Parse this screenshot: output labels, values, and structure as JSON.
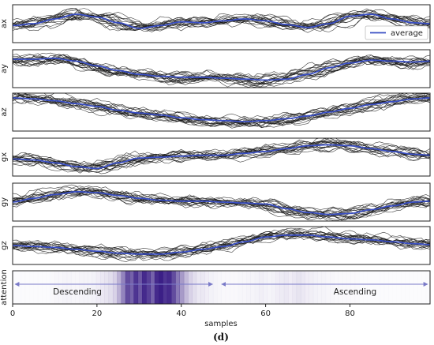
{
  "chart_data": {
    "type": "line",
    "caption": "(d)",
    "xlabel": "samples",
    "xlim": [
      0,
      99
    ],
    "x_ticks": [
      0,
      20,
      40,
      60,
      80
    ],
    "legend": {
      "label": "average",
      "placement": "top-right",
      "color": "#3a4fc4"
    },
    "individual_line_color": "#1a1a1a",
    "average_line_color": "#3a4fc4",
    "n_individual_traces": 18,
    "panels": [
      {
        "name": "ax",
        "ylabel": "ax",
        "ylim": [
          -1,
          1
        ],
        "average": [
          [
            0,
            -0.1
          ],
          [
            5,
            0.0
          ],
          [
            10,
            0.25
          ],
          [
            15,
            0.5
          ],
          [
            20,
            0.35
          ],
          [
            25,
            0.05
          ],
          [
            30,
            -0.25
          ],
          [
            35,
            -0.1
          ],
          [
            40,
            0.1
          ],
          [
            45,
            0.05
          ],
          [
            50,
            0.15
          ],
          [
            55,
            0.25
          ],
          [
            60,
            0.15
          ],
          [
            65,
            -0.05
          ],
          [
            70,
            -0.2
          ],
          [
            75,
            0.0
          ],
          [
            80,
            0.4
          ],
          [
            85,
            0.5
          ],
          [
            90,
            0.25
          ],
          [
            95,
            0.05
          ],
          [
            99,
            0.0
          ]
        ]
      },
      {
        "name": "ay",
        "ylabel": "ay",
        "ylim": [
          -1,
          1
        ],
        "average": [
          [
            0,
            0.5
          ],
          [
            5,
            0.5
          ],
          [
            10,
            0.55
          ],
          [
            15,
            0.4
          ],
          [
            20,
            0.15
          ],
          [
            25,
            -0.1
          ],
          [
            30,
            -0.3
          ],
          [
            35,
            -0.4
          ],
          [
            40,
            -0.45
          ],
          [
            45,
            -0.45
          ],
          [
            50,
            -0.5
          ],
          [
            55,
            -0.55
          ],
          [
            60,
            -0.6
          ],
          [
            65,
            -0.55
          ],
          [
            70,
            -0.3
          ],
          [
            75,
            0.05
          ],
          [
            80,
            0.3
          ],
          [
            85,
            0.45
          ],
          [
            90,
            0.4
          ],
          [
            95,
            0.35
          ],
          [
            99,
            0.4
          ]
        ]
      },
      {
        "name": "az",
        "ylabel": "az",
        "ylim": [
          -1,
          1
        ],
        "average": [
          [
            0,
            0.75
          ],
          [
            5,
            0.7
          ],
          [
            10,
            0.6
          ],
          [
            15,
            0.45
          ],
          [
            20,
            0.3
          ],
          [
            25,
            0.1
          ],
          [
            30,
            -0.05
          ],
          [
            35,
            -0.15
          ],
          [
            40,
            -0.3
          ],
          [
            45,
            -0.4
          ],
          [
            50,
            -0.45
          ],
          [
            55,
            -0.5
          ],
          [
            60,
            -0.45
          ],
          [
            65,
            -0.35
          ],
          [
            70,
            -0.2
          ],
          [
            75,
            0.0
          ],
          [
            80,
            0.2
          ],
          [
            85,
            0.4
          ],
          [
            90,
            0.55
          ],
          [
            95,
            0.7
          ],
          [
            99,
            0.75
          ]
        ]
      },
      {
        "name": "gx",
        "ylabel": "gx",
        "ylim": [
          -1,
          1
        ],
        "average": [
          [
            0,
            -0.1
          ],
          [
            5,
            -0.15
          ],
          [
            10,
            -0.3
          ],
          [
            15,
            -0.5
          ],
          [
            20,
            -0.6
          ],
          [
            25,
            -0.3
          ],
          [
            30,
            -0.05
          ],
          [
            35,
            0.0
          ],
          [
            40,
            0.05
          ],
          [
            45,
            0.1
          ],
          [
            50,
            0.1
          ],
          [
            55,
            0.2
          ],
          [
            60,
            0.3
          ],
          [
            65,
            0.45
          ],
          [
            70,
            0.6
          ],
          [
            75,
            0.65
          ],
          [
            80,
            0.6
          ],
          [
            85,
            0.45
          ],
          [
            90,
            0.3
          ],
          [
            95,
            0.15
          ],
          [
            99,
            0.1
          ]
        ]
      },
      {
        "name": "gy",
        "ylabel": "gy",
        "ylim": [
          -1,
          1
        ],
        "average": [
          [
            0,
            0.0
          ],
          [
            5,
            0.2
          ],
          [
            10,
            0.4
          ],
          [
            15,
            0.55
          ],
          [
            20,
            0.5
          ],
          [
            25,
            0.35
          ],
          [
            30,
            0.2
          ],
          [
            35,
            0.1
          ],
          [
            40,
            0.05
          ],
          [
            45,
            0.05
          ],
          [
            50,
            0.0
          ],
          [
            55,
            -0.05
          ],
          [
            60,
            -0.1
          ],
          [
            65,
            -0.35
          ],
          [
            70,
            -0.55
          ],
          [
            75,
            -0.65
          ],
          [
            80,
            -0.6
          ],
          [
            85,
            -0.4
          ],
          [
            90,
            -0.2
          ],
          [
            95,
            0.0
          ],
          [
            99,
            0.05
          ]
        ]
      },
      {
        "name": "gz",
        "ylabel": "gz",
        "ylim": [
          -1,
          1
        ],
        "average": [
          [
            0,
            0.0
          ],
          [
            5,
            -0.05
          ],
          [
            10,
            -0.1
          ],
          [
            15,
            -0.2
          ],
          [
            20,
            -0.3
          ],
          [
            25,
            -0.4
          ],
          [
            30,
            -0.45
          ],
          [
            35,
            -0.45
          ],
          [
            40,
            -0.35
          ],
          [
            45,
            -0.2
          ],
          [
            50,
            -0.05
          ],
          [
            55,
            0.2
          ],
          [
            60,
            0.45
          ],
          [
            65,
            0.55
          ],
          [
            70,
            0.55
          ],
          [
            75,
            0.45
          ],
          [
            80,
            0.35
          ],
          [
            85,
            0.3
          ],
          [
            90,
            0.2
          ],
          [
            95,
            0.1
          ],
          [
            99,
            0.05
          ]
        ]
      }
    ],
    "attention": {
      "ylabel": "attention",
      "color": "#3b1f86",
      "regions": [
        {
          "label": "Descending",
          "x_start": 0,
          "x_end": 48
        },
        {
          "label": "Ascending",
          "x_start": 49,
          "x_end": 99
        }
      ],
      "weights": [
        0.02,
        0.02,
        0.02,
        0.02,
        0.02,
        0.02,
        0.02,
        0.02,
        0.02,
        0.03,
        0.04,
        0.04,
        0.05,
        0.05,
        0.04,
        0.04,
        0.05,
        0.05,
        0.05,
        0.06,
        0.08,
        0.1,
        0.12,
        0.15,
        0.2,
        0.35,
        0.55,
        0.8,
        0.7,
        0.9,
        0.75,
        0.95,
        0.85,
        0.7,
        0.95,
        1.0,
        0.9,
        0.95,
        0.8,
        0.6,
        0.45,
        0.3,
        0.2,
        0.15,
        0.1,
        0.1,
        0.08,
        0.06,
        0.05,
        0.04,
        0.03,
        0.03,
        0.03,
        0.03,
        0.04,
        0.04,
        0.05,
        0.05,
        0.06,
        0.07,
        0.06,
        0.05,
        0.06,
        0.08,
        0.09,
        0.1,
        0.08,
        0.1,
        0.12,
        0.1,
        0.08,
        0.07,
        0.06,
        0.05,
        0.05,
        0.04,
        0.04,
        0.03,
        0.03,
        0.03,
        0.03,
        0.03,
        0.03,
        0.02,
        0.02,
        0.02,
        0.02,
        0.02,
        0.02,
        0.02,
        0.02,
        0.02,
        0.02,
        0.02,
        0.02,
        0.02,
        0.02,
        0.02,
        0.02,
        0.02
      ]
    }
  }
}
